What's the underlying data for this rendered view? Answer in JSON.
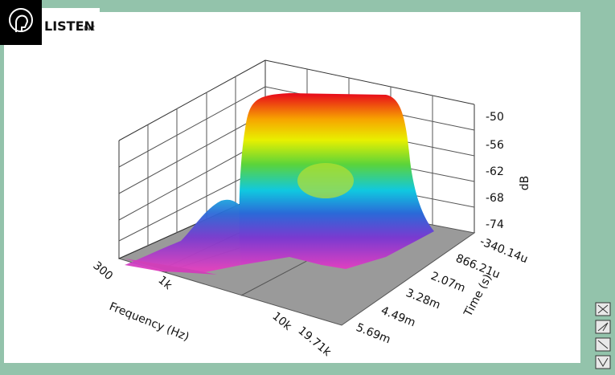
{
  "logo": {
    "name": "LISTEN",
    "suffix": "INC"
  },
  "plot": {
    "z_axis": {
      "label": "dB",
      "ticks": [
        "-50",
        "-56",
        "-62",
        "-68",
        "-74"
      ]
    },
    "time_axis": {
      "label": "Time (s)",
      "ticks": [
        "-340.14u",
        "866.21u",
        "2.07m",
        "3.28m",
        "4.49m",
        "5.69m"
      ]
    },
    "frequency_axis": {
      "label": "Frequency (Hz)",
      "ticks": [
        "300",
        "1k",
        "10k",
        "19.71k"
      ]
    }
  }
}
